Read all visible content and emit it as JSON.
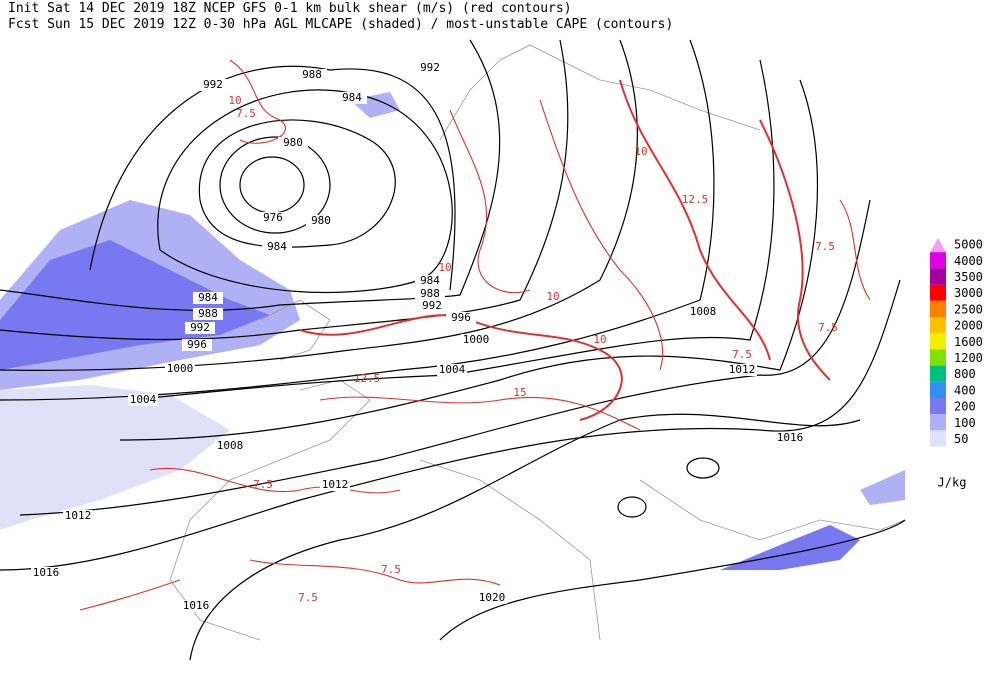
{
  "header": {
    "line1": "Init  Sat 14 DEC 2019 18Z  NCEP GFS 0-1 km bulk shear (m/s) (red contours)",
    "line2": "Fcst Sun 15 DEC 2019 12Z  0-30 hPa AGL MLCAPE (shaded) / most-unstable CAPE (contours)"
  },
  "legend": {
    "unit": "J/kg",
    "levels": [
      {
        "label": "5000",
        "color": "#f0a0f0"
      },
      {
        "label": "4000",
        "color": "#e000e0"
      },
      {
        "label": "3500",
        "color": "#a000a0"
      },
      {
        "label": "3000",
        "color": "#ff0000"
      },
      {
        "label": "2500",
        "color": "#ff8000"
      },
      {
        "label": "2000",
        "color": "#ffc000"
      },
      {
        "label": "1600",
        "color": "#f0f000"
      },
      {
        "label": "1200",
        "color": "#80e000"
      },
      {
        "label": "800",
        "color": "#00c080"
      },
      {
        "label": "400",
        "color": "#3090f0"
      },
      {
        "label": "200",
        "color": "#7878f0"
      },
      {
        "label": "100",
        "color": "#b0b0f4"
      },
      {
        "label": "50",
        "color": "#e0e0f8"
      }
    ]
  },
  "isobar_labels": [
    "988",
    "992",
    "992",
    "984",
    "980",
    "976",
    "980",
    "984",
    "984",
    "988",
    "992",
    "996",
    "1000",
    "1004",
    "1008",
    "1012",
    "1016",
    "1016",
    "1012",
    "1020",
    "984",
    "988",
    "992",
    "996",
    "1000",
    "1004",
    "1008",
    "1012",
    "1016"
  ],
  "shear_labels": [
    "10",
    "7.5",
    "10",
    "12.5",
    "15",
    "7.5",
    "7.5",
    "7.5",
    "10",
    "7.5",
    "7.5",
    "10",
    "12.5",
    "10",
    "7.5"
  ]
}
